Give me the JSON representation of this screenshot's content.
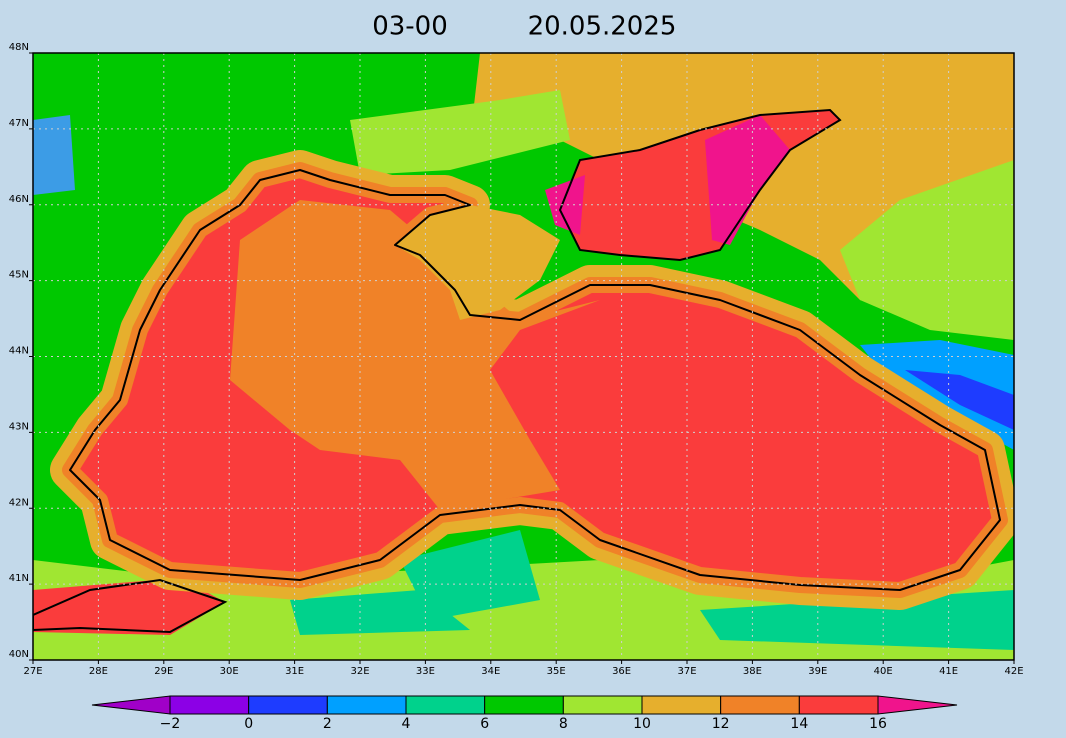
{
  "title": {
    "time": "03-00",
    "date": "20.05.2025"
  },
  "lat_labels": [
    "48N",
    "47N",
    "46N",
    "45N",
    "44N",
    "43N",
    "42N",
    "41N",
    "40N"
  ],
  "lon_labels": [
    "27E",
    "28E",
    "29E",
    "30E",
    "31E",
    "32E",
    "33E",
    "34E",
    "35E",
    "36E",
    "37E",
    "38E",
    "39E",
    "40E",
    "41E",
    "42E"
  ],
  "colorbar": {
    "labels": [
      "−2",
      "0",
      "2",
      "4",
      "6",
      "8",
      "10",
      "12",
      "14",
      "16"
    ]
  }
}
